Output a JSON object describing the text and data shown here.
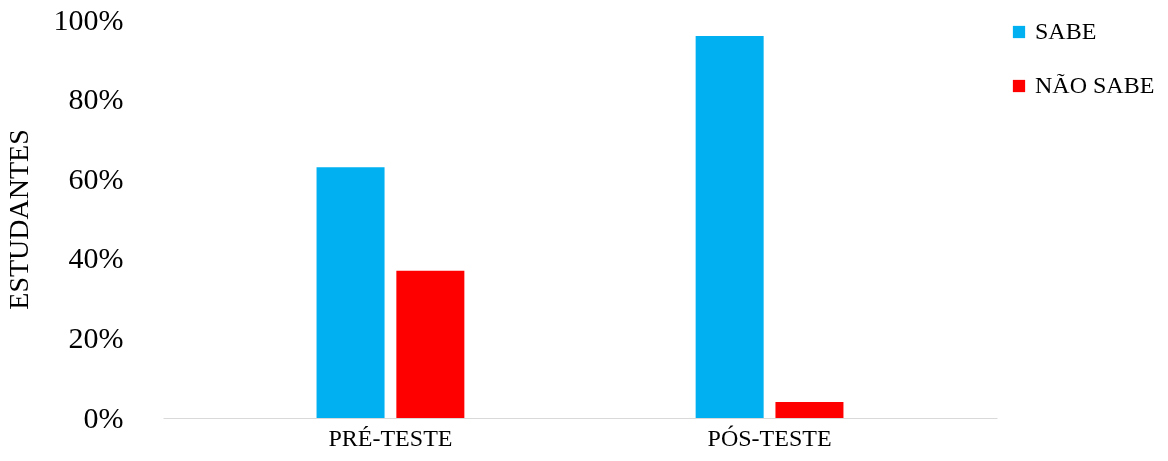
{
  "chart_data": {
    "type": "bar",
    "ylabel": "ESTUDANTES",
    "categories": [
      "PRÉ-TESTE",
      "PÓS-TESTE"
    ],
    "series": [
      {
        "name": "SABE",
        "color": "#00b0f0",
        "values": [
          63,
          96
        ]
      },
      {
        "name": "NÃO SABE",
        "color": "#ff0000",
        "values": [
          37,
          4
        ]
      }
    ],
    "ylim": [
      0,
      100
    ],
    "yticks": [
      {
        "value": 0,
        "label": "0%"
      },
      {
        "value": 20,
        "label": "20%"
      },
      {
        "value": 40,
        "label": "40%"
      },
      {
        "value": 60,
        "label": "60%"
      },
      {
        "value": 80,
        "label": "80%"
      },
      {
        "value": 100,
        "label": "100%"
      }
    ],
    "grid": false,
    "legend": "top right"
  }
}
